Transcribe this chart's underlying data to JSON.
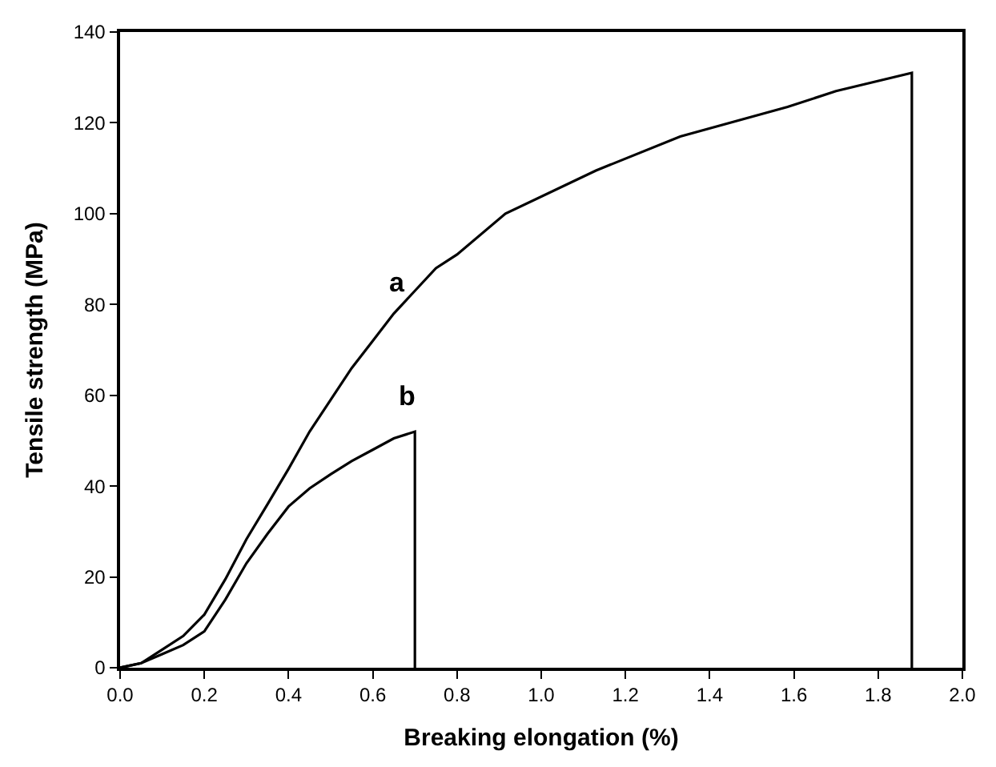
{
  "chart_data": {
    "type": "line",
    "xlabel": "Breaking elongation (%)",
    "ylabel": "Tensile strength (MPa)",
    "series": [
      {
        "color": "#000000",
        "x": [
          0,
          0.05,
          0.1,
          0.15,
          0.2,
          0.25,
          0.3,
          0.35,
          0.4,
          0.45,
          0.5,
          0.55,
          0.6,
          0.65,
          0.7,
          0.75,
          0.8,
          0.915,
          1.13,
          1.33,
          1.585,
          1.7,
          1.88,
          1.88
        ],
        "values": [
          0,
          1,
          4,
          7,
          11.7,
          19.5,
          28.3,
          36,
          43.8,
          52,
          59,
          66,
          72,
          78,
          83,
          88,
          91,
          100,
          109.5,
          117,
          123.5,
          127,
          131,
          0
        ]
      },
      {
        "color": "#000000",
        "x": [
          0,
          0.05,
          0.1,
          0.15,
          0.2,
          0.25,
          0.3,
          0.35,
          0.4,
          0.45,
          0.5,
          0.55,
          0.6,
          0.65,
          0.7,
          0.7
        ],
        "values": [
          0,
          1,
          3,
          5,
          8,
          15,
          23,
          29.5,
          35.5,
          39.5,
          42.6,
          45.5,
          48,
          50.5,
          52,
          0
        ]
      }
    ],
    "annotations": [
      "a",
      "b"
    ],
    "xlim": [
      0,
      2
    ],
    "xticks": [
      {
        "value": 0,
        "label": "0.0"
      },
      {
        "value": 0.2,
        "label": "0.2"
      },
      {
        "value": 0.4,
        "label": "0.4"
      },
      {
        "value": 0.6,
        "label": "0.6"
      },
      {
        "value": 0.8,
        "label": "0.8"
      },
      {
        "value": 1,
        "label": "1.0"
      },
      {
        "value": 1.2,
        "label": "1.2"
      },
      {
        "value": 1.4,
        "label": "1.4"
      },
      {
        "value": 1.6,
        "label": "1.6"
      },
      {
        "value": 1.8,
        "label": "1.8"
      },
      {
        "value": 2,
        "label": "2.0"
      }
    ],
    "ylim": [
      0,
      140
    ],
    "yticks": [
      0,
      20,
      40,
      60,
      80,
      100,
      120,
      140
    ],
    "marker": "none",
    "line_style": "solid"
  }
}
